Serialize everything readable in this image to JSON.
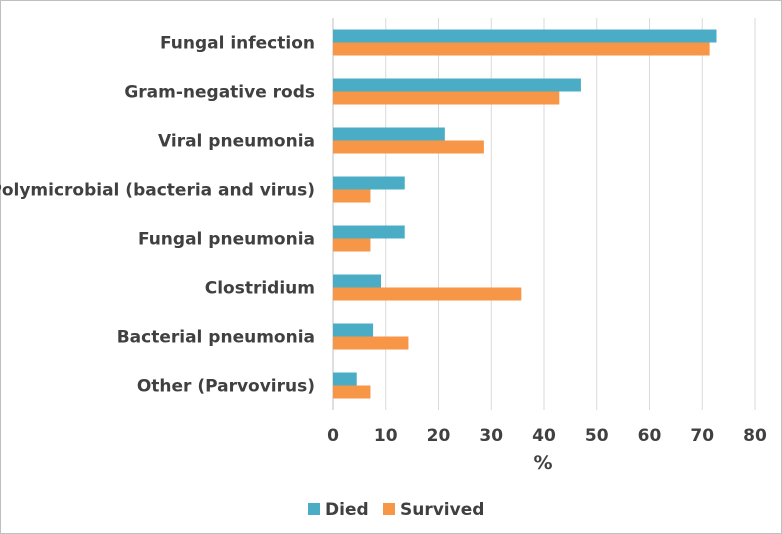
{
  "chart_data": {
    "type": "bar",
    "orientation": "horizontal",
    "title": "",
    "xlabel": "%",
    "ylabel": "",
    "xlim": [
      0,
      80
    ],
    "xticks": [
      0,
      10,
      20,
      30,
      40,
      50,
      60,
      70,
      80
    ],
    "grid": true,
    "legend_position": "bottom",
    "categories": [
      "Fungal  infection",
      "Gram-negative rods",
      "Viral pneumonia",
      "Polymicrobial (bacteria and virus)",
      "Fungal pneumonia",
      "Clostridium",
      "Bacterial pneumonia",
      "Other (Parvovirus)"
    ],
    "series": [
      {
        "name": "Died",
        "color": "#4bacc6",
        "values": [
          72.7,
          47.0,
          21.2,
          13.6,
          13.6,
          9.1,
          7.6,
          4.5
        ]
      },
      {
        "name": "Survived",
        "color": "#f79646",
        "values": [
          71.4,
          42.9,
          28.6,
          7.1,
          7.1,
          35.7,
          14.3,
          7.1
        ]
      }
    ]
  }
}
